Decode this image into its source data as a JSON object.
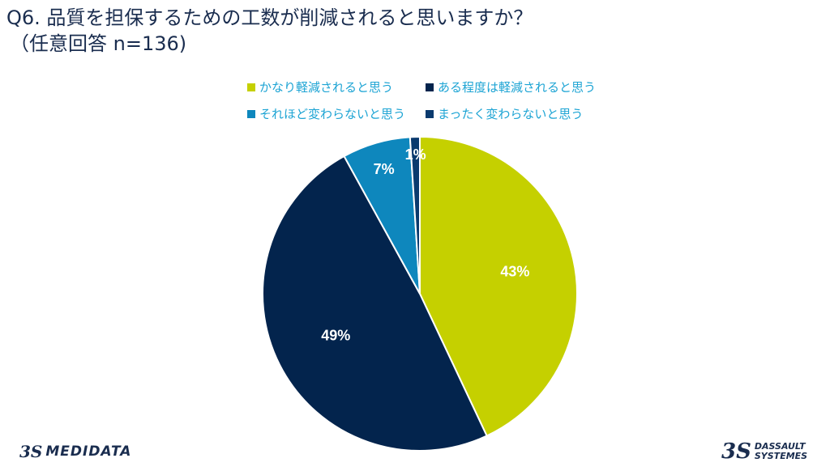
{
  "title": {
    "line1": "Q6. 品質を担保するための工数が削減されると思いますか？",
    "line2": "（任意回答 n=136)"
  },
  "chart_data": {
    "type": "pie",
    "categories": [
      "かなり軽減されると思う",
      "ある程度は軽減されると思う",
      "それほど変わらないと思う",
      "まったく変わらないと思う"
    ],
    "values": [
      43,
      49,
      7,
      1
    ],
    "labels": [
      "43%",
      "49%",
      "7%",
      "1%"
    ],
    "colors": [
      "#c5d000",
      "#03244d",
      "#0e87bd",
      "#0a3a6e"
    ],
    "legend_position": "top",
    "start_angle_deg": 0,
    "direction": "clockwise"
  },
  "logos": {
    "left_mark": "3S",
    "left_text": "MEDIDATA",
    "right_mark": "3S",
    "right_text_line1": "DASSAULT",
    "right_text_line2": "SYSTEMES"
  }
}
